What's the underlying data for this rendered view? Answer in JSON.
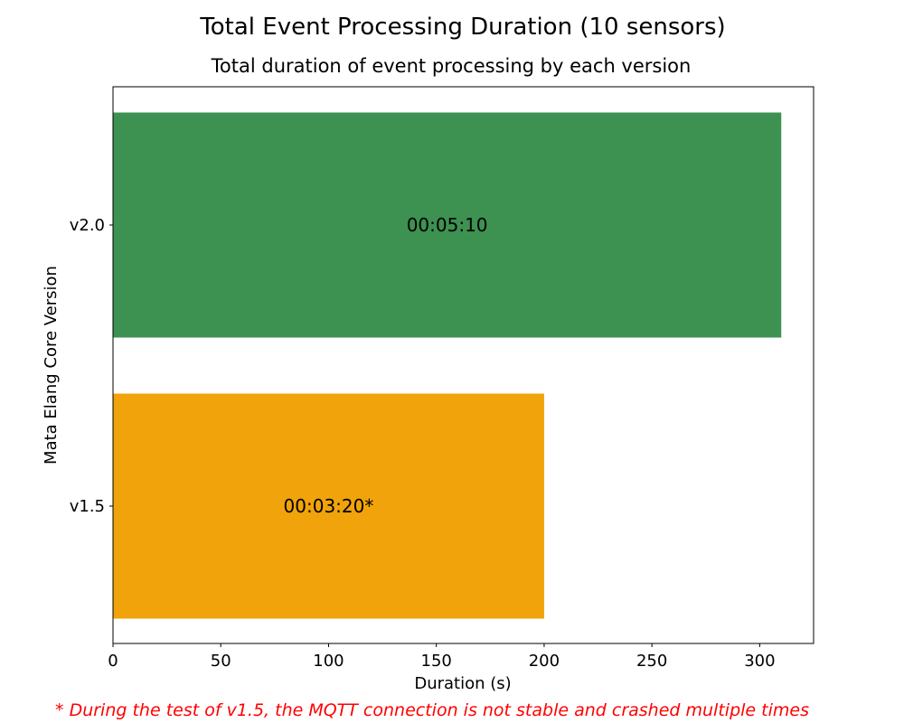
{
  "chart_data": {
    "type": "bar",
    "orientation": "horizontal",
    "title": "Total Event Processing Duration (10 sensors)",
    "subtitle": "Total duration of event processing by each version",
    "xlabel": "Duration (s)",
    "ylabel": "Mata Elang Core Version",
    "categories": [
      "v1.5",
      "v2.0"
    ],
    "values": [
      200,
      310
    ],
    "bar_labels": [
      "00:03:20*",
      "00:05:10"
    ],
    "colors": [
      "#f0a30a",
      "#3d9151"
    ],
    "xlim": [
      0,
      325
    ],
    "xticks": [
      0,
      50,
      100,
      150,
      200,
      250,
      300
    ],
    "grid": false,
    "footnote": "* During the test of v1.5, the MQTT connection is not stable and crashed multiple times",
    "footnote_color": "#ff0000"
  }
}
